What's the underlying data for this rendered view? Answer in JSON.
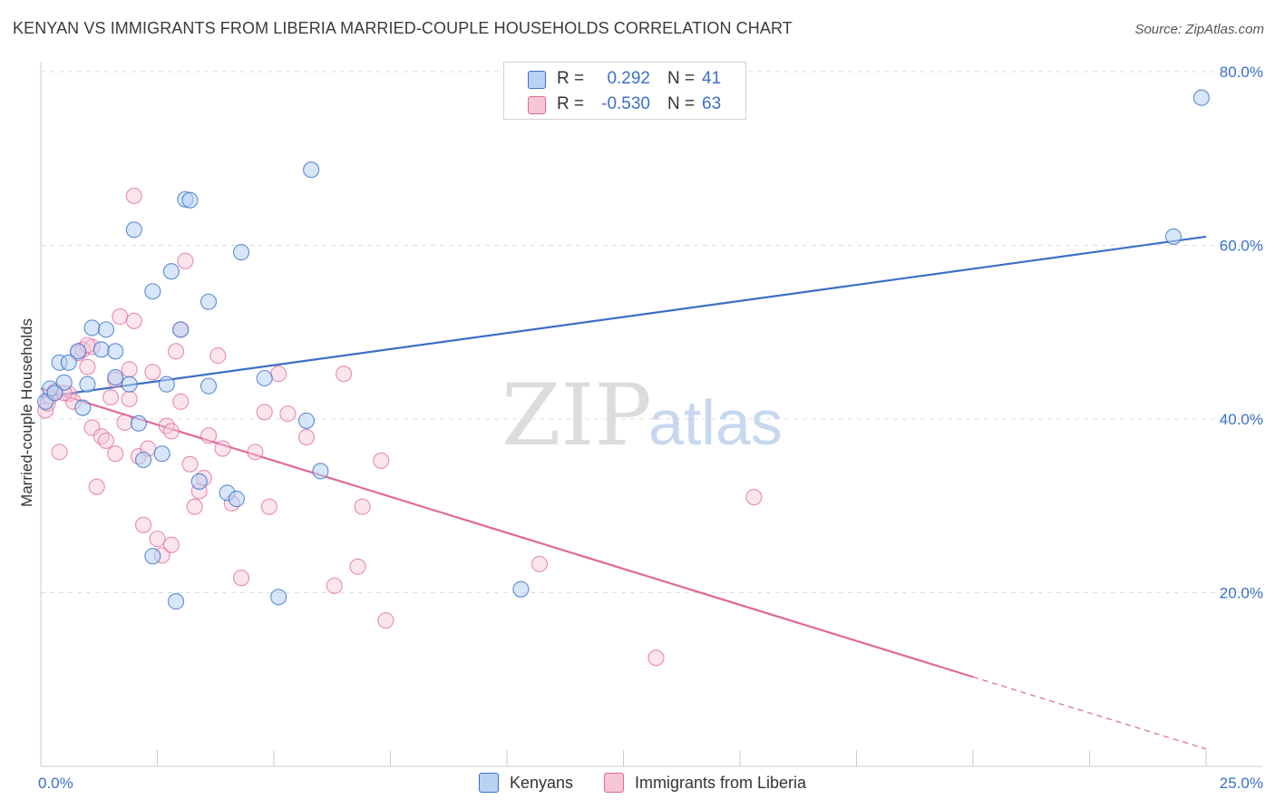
{
  "title": "KENYAN VS IMMIGRANTS FROM LIBERIA MARRIED-COUPLE HOUSEHOLDS CORRELATION CHART",
  "source": "Source: ZipAtlas.com",
  "watermark": {
    "part1": "ZIP",
    "part2": "atlas"
  },
  "legend": {
    "rows": [
      {
        "r_label": "R =",
        "r_value": "0.292",
        "n_label": "N =",
        "n_value": "41"
      },
      {
        "r_label": "R =",
        "r_value": "-0.530",
        "n_label": "N =",
        "n_value": "63"
      }
    ]
  },
  "bottom_legend": {
    "kenyans": "Kenyans",
    "liberia": "Immigrants from Liberia"
  },
  "colors": {
    "blue": "#3a70c8",
    "blue_fill": "#b8d2f4",
    "pink": "#e0689a",
    "pink_fill": "#f7c6d6",
    "grid": "#dddddd"
  },
  "chart_data": {
    "type": "scatter",
    "title": "KENYAN VS IMMIGRANTS FROM LIBERIA MARRIED-COUPLE HOUSEHOLDS CORRELATION CHART",
    "xlabel": "",
    "ylabel": "Married-couple Households",
    "xlim": [
      0,
      25
    ],
    "ylim": [
      0,
      80
    ],
    "x_tick_labels": [
      "0.0%",
      "25.0%"
    ],
    "y_tick_labels": [
      "20.0%",
      "40.0%",
      "60.0%",
      "80.0%"
    ],
    "y_ticks": [
      20,
      40,
      60,
      80
    ],
    "grid": true,
    "legend_position": "top-center",
    "series": [
      {
        "name": "Kenyans",
        "color": "#3a70c8",
        "points": [
          [
            0.2,
            43.5
          ],
          [
            0.4,
            46.5
          ],
          [
            0.5,
            44.2
          ],
          [
            0.8,
            47.8
          ],
          [
            1.1,
            50.5
          ],
          [
            0.9,
            41.3
          ],
          [
            1.3,
            48.0
          ],
          [
            1.4,
            50.3
          ],
          [
            1.6,
            44.8
          ],
          [
            1.6,
            47.8
          ],
          [
            1.9,
            44.0
          ],
          [
            2.0,
            61.8
          ],
          [
            2.1,
            39.5
          ],
          [
            2.2,
            35.3
          ],
          [
            2.4,
            54.7
          ],
          [
            2.4,
            24.2
          ],
          [
            2.6,
            36.0
          ],
          [
            2.7,
            44.0
          ],
          [
            2.8,
            57.0
          ],
          [
            2.9,
            19.0
          ],
          [
            3.0,
            50.3
          ],
          [
            3.1,
            65.3
          ],
          [
            3.2,
            65.2
          ],
          [
            3.4,
            32.8
          ],
          [
            3.6,
            53.5
          ],
          [
            3.6,
            43.8
          ],
          [
            4.0,
            31.5
          ],
          [
            4.2,
            30.8
          ],
          [
            4.3,
            59.2
          ],
          [
            4.8,
            44.7
          ],
          [
            5.1,
            19.5
          ],
          [
            5.7,
            39.8
          ],
          [
            5.8,
            68.7
          ],
          [
            6.0,
            34.0
          ],
          [
            10.3,
            20.4
          ],
          [
            24.3,
            61.0
          ],
          [
            24.9,
            77.0
          ],
          [
            0.1,
            42.0
          ],
          [
            0.6,
            46.5
          ],
          [
            0.3,
            43.0
          ],
          [
            1.0,
            44.0
          ]
        ],
        "trend": {
          "x": [
            0.0,
            25.0
          ],
          "y": [
            42.5,
            61.0
          ]
        }
      },
      {
        "name": "Immigrants from Liberia",
        "color": "#e0689a",
        "points": [
          [
            0.1,
            41.0
          ],
          [
            0.2,
            42.6
          ],
          [
            0.3,
            43.2
          ],
          [
            0.4,
            36.2
          ],
          [
            0.6,
            42.9
          ],
          [
            0.7,
            42.0
          ],
          [
            0.8,
            47.6
          ],
          [
            0.9,
            48.0
          ],
          [
            1.0,
            46.0
          ],
          [
            1.1,
            48.3
          ],
          [
            1.1,
            39.0
          ],
          [
            1.2,
            32.2
          ],
          [
            1.3,
            38.0
          ],
          [
            1.4,
            37.5
          ],
          [
            1.5,
            42.5
          ],
          [
            1.6,
            36.0
          ],
          [
            1.6,
            44.5
          ],
          [
            1.7,
            51.8
          ],
          [
            1.8,
            39.6
          ],
          [
            1.9,
            42.3
          ],
          [
            1.9,
            45.7
          ],
          [
            2.0,
            51.3
          ],
          [
            2.1,
            35.7
          ],
          [
            2.2,
            27.8
          ],
          [
            2.3,
            36.6
          ],
          [
            2.4,
            45.4
          ],
          [
            2.5,
            26.2
          ],
          [
            2.6,
            24.3
          ],
          [
            2.7,
            39.2
          ],
          [
            2.8,
            25.5
          ],
          [
            2.8,
            38.6
          ],
          [
            2.9,
            47.8
          ],
          [
            3.0,
            50.3
          ],
          [
            3.1,
            58.2
          ],
          [
            3.2,
            34.8
          ],
          [
            3.3,
            29.9
          ],
          [
            3.4,
            31.7
          ],
          [
            3.5,
            33.2
          ],
          [
            3.6,
            38.1
          ],
          [
            3.8,
            47.3
          ],
          [
            3.9,
            36.6
          ],
          [
            4.1,
            30.3
          ],
          [
            4.3,
            21.7
          ],
          [
            4.6,
            36.2
          ],
          [
            4.8,
            40.8
          ],
          [
            4.9,
            29.9
          ],
          [
            5.1,
            45.2
          ],
          [
            5.3,
            40.6
          ],
          [
            5.7,
            37.9
          ],
          [
            6.3,
            20.8
          ],
          [
            6.5,
            45.2
          ],
          [
            6.8,
            23.0
          ],
          [
            6.9,
            29.9
          ],
          [
            7.3,
            35.2
          ],
          [
            7.4,
            16.8
          ],
          [
            10.7,
            23.3
          ],
          [
            13.2,
            12.5
          ],
          [
            15.3,
            31.0
          ],
          [
            2.0,
            65.7
          ],
          [
            0.15,
            41.8
          ],
          [
            0.5,
            43.0
          ],
          [
            1.0,
            48.5
          ],
          [
            3.0,
            42.0
          ]
        ],
        "trend": {
          "x": [
            0.0,
            20.0
          ],
          "y": [
            43.5,
            10.3
          ]
        },
        "trend_dashed": {
          "x": [
            20.0,
            25.0
          ],
          "y": [
            10.3,
            2.0
          ]
        }
      }
    ]
  }
}
